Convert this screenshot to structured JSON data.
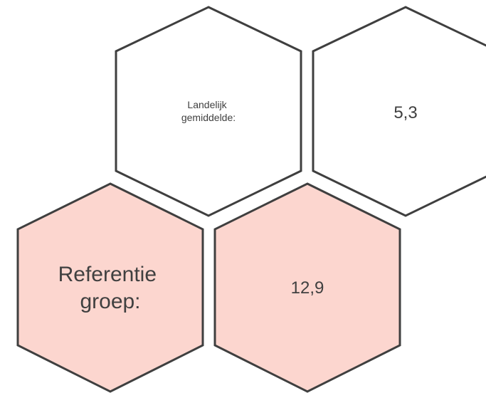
{
  "nodes": [
    {
      "lines": [
        "Landelijk",
        "gemiddelde:"
      ]
    },
    {
      "lines": [
        "5,3"
      ]
    },
    {
      "lines": [
        "Referentie",
        "groep:"
      ]
    },
    {
      "lines": [
        "12,9"
      ]
    }
  ]
}
